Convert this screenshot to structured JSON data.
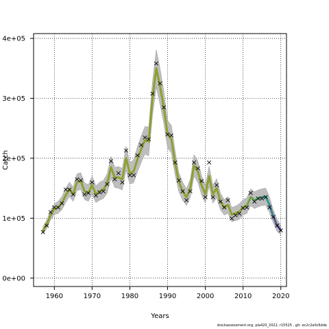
{
  "chart_data": {
    "type": "line",
    "title": "",
    "xlabel": "Years",
    "ylabel": "Catch",
    "xlim": [
      1954.5,
      2021.5
    ],
    "ylim": [
      -14000,
      408000
    ],
    "x_ticks": [
      1960,
      1970,
      1980,
      1990,
      2000,
      2010,
      2020
    ],
    "y_ticks": [
      0,
      100000,
      200000,
      300000,
      400000
    ],
    "x_tick_labels": [
      "1960",
      "1970",
      "1980",
      "1990",
      "2000",
      "2010",
      "2020"
    ],
    "y_tick_labels": [
      "0e+00",
      "1e+05",
      "2e+05",
      "3e+05",
      "4e+05"
    ],
    "grid": true,
    "grid_style": "dotted",
    "band_color": "#bdbdbd",
    "line_colors": [
      "#8aa12e",
      "#2f9d8f",
      "#5a3f8f"
    ],
    "marker_symbol": "×",
    "years": [
      1957,
      1958,
      1959,
      1960,
      1961,
      1962,
      1963,
      1964,
      1965,
      1966,
      1967,
      1968,
      1969,
      1970,
      1971,
      1972,
      1973,
      1974,
      1975,
      1976,
      1977,
      1978,
      1979,
      1980,
      1981,
      1982,
      1983,
      1984,
      1985,
      1986,
      1987,
      1988,
      1989,
      1990,
      1991,
      1992,
      1993,
      1994,
      1995,
      1996,
      1997,
      1998,
      1999,
      2000,
      2001,
      2002,
      2003,
      2004,
      2005,
      2006,
      2007,
      2008,
      2009,
      2010,
      2011,
      2012,
      2013,
      2014,
      2015,
      2016,
      2017,
      2018,
      2019,
      2020
    ],
    "fitted": [
      80000,
      90000,
      105000,
      115000,
      118000,
      125000,
      138000,
      148000,
      140000,
      160000,
      162000,
      145000,
      142000,
      155000,
      140000,
      145000,
      148000,
      158000,
      185000,
      168000,
      168000,
      165000,
      200000,
      175000,
      178000,
      198000,
      215000,
      230000,
      228000,
      300000,
      350000,
      320000,
      285000,
      240000,
      232000,
      192000,
      160000,
      145000,
      135000,
      150000,
      188000,
      178000,
      155000,
      140000,
      170000,
      140000,
      150000,
      128000,
      118000,
      122000,
      106000,
      108000,
      111000,
      118000,
      121000,
      135000,
      130000,
      133000,
      135000,
      136000,
      122000,
      103000,
      88000,
      80000
    ],
    "lower": [
      74000,
      83000,
      97000,
      106000,
      108000,
      114000,
      126000,
      136000,
      128000,
      146000,
      148000,
      131000,
      128000,
      140000,
      126000,
      130000,
      133000,
      142000,
      167000,
      151000,
      150000,
      147000,
      180000,
      157000,
      159000,
      177000,
      193000,
      207000,
      204000,
      272000,
      319000,
      290000,
      258000,
      217000,
      209000,
      172000,
      144000,
      130000,
      121000,
      135000,
      170000,
      160000,
      139000,
      125000,
      153000,
      125000,
      134000,
      114000,
      105000,
      108000,
      94000,
      96000,
      98000,
      105000,
      108000,
      121000,
      116000,
      119000,
      121000,
      122000,
      109000,
      92000,
      78000,
      72000
    ],
    "upper": [
      86000,
      97000,
      113000,
      124000,
      128000,
      136000,
      150000,
      160000,
      152000,
      174000,
      176000,
      159000,
      156000,
      170000,
      154000,
      160000,
      163000,
      174000,
      203000,
      185000,
      186000,
      183000,
      220000,
      193000,
      197000,
      219000,
      237000,
      253000,
      252000,
      328000,
      381000,
      350000,
      312000,
      263000,
      255000,
      212000,
      176000,
      160000,
      149000,
      165000,
      206000,
      196000,
      171000,
      155000,
      187000,
      155000,
      166000,
      142000,
      131000,
      136000,
      118000,
      120000,
      124000,
      131000,
      134000,
      149000,
      144000,
      147000,
      149000,
      150000,
      135000,
      114000,
      98000,
      88000
    ],
    "observed": [
      77000,
      88000,
      110000,
      118000,
      118000,
      125000,
      148000,
      148000,
      140000,
      165000,
      163000,
      140000,
      142000,
      160000,
      138000,
      143000,
      145000,
      157000,
      195000,
      165000,
      175000,
      160000,
      213000,
      172000,
      172000,
      205000,
      222000,
      235000,
      232000,
      308000,
      358000,
      325000,
      285000,
      240000,
      238000,
      193000,
      163000,
      145000,
      130000,
      145000,
      193000,
      183000,
      162000,
      135000,
      193000,
      135000,
      155000,
      128000,
      118000,
      130000,
      100000,
      105000,
      108000,
      117000,
      118000,
      142000,
      128000,
      133000,
      133000,
      135000,
      118000,
      102000,
      88000,
      80000
    ]
  },
  "footer": {
    "text": "stockassessment.org, pla420_2022, r15525 , git: ec2c2a0c6dde"
  }
}
